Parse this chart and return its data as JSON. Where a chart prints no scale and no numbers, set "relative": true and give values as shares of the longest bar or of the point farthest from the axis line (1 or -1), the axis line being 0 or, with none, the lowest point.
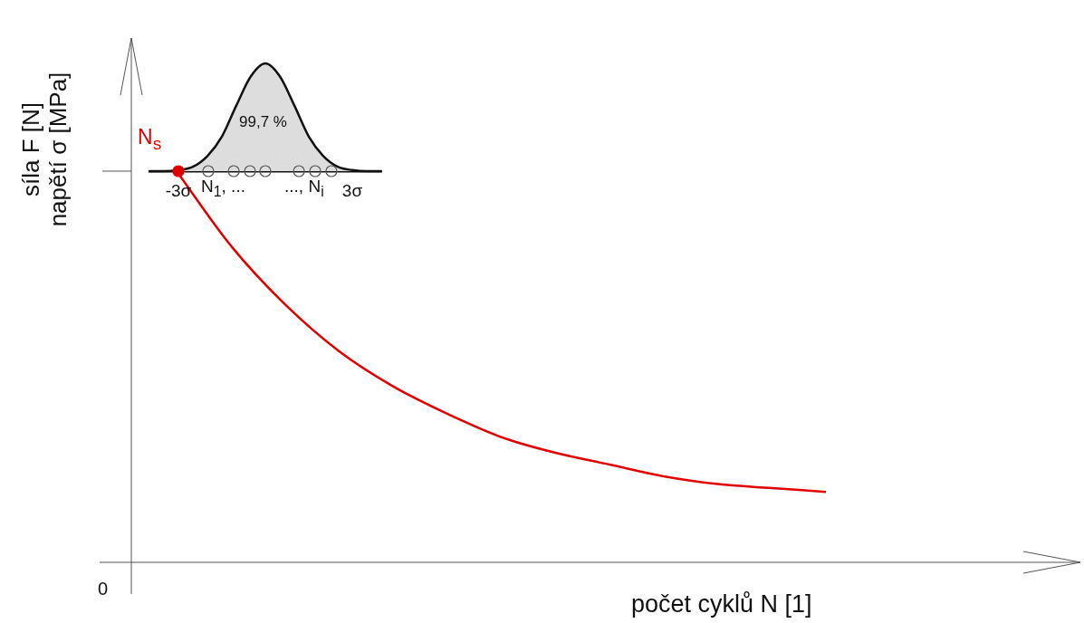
{
  "chart_data": [
    {
      "type": "line",
      "relative": true,
      "xlabel": "počet cyklů N [1]",
      "ylabel": "síla F [N]\nnapětí σ [MPa]",
      "categories": [
        null,
        null,
        null,
        null,
        null,
        null,
        null,
        null,
        null,
        null,
        null,
        null,
        null
      ],
      "series": [
        {
          "color": "#e00000",
          "values": [
            1,
            0.81,
            0.66,
            0.54,
            0.45,
            0.38,
            0.32,
            0.28,
            0.25,
            0.22,
            0.2,
            0.19,
            0.18
          ]
        }
      ],
      "annotations": [
        "0"
      ]
    },
    {
      "type": "area",
      "relative": true,
      "x": [
        -4,
        -3.5,
        -3,
        -2.5,
        -2,
        -1.5,
        -1,
        -0.5,
        0,
        0.5,
        1,
        1.5,
        2,
        2.5,
        3,
        3.5,
        4
      ],
      "xlim": [
        -4,
        4
      ],
      "xticks": [
        {
          "value": -3,
          "label": "-3σ"
        },
        {
          "value": 3,
          "label": "3σ"
        }
      ],
      "series": [
        {
          "color": "#111111",
          "values": [
            0,
            0,
            0.01,
            0.04,
            0.14,
            0.32,
            0.61,
            0.88,
            1,
            0.88,
            0.61,
            0.32,
            0.14,
            0.04,
            0.01,
            0,
            0
          ]
        },
        {
          "type": "scatter",
          "marker": "circle",
          "color": "#555555",
          "x": [
            -1.97,
            -1.09,
            -0.53,
            0,
            1.16,
            1.72,
            2.28
          ],
          "values": [
            0,
            0,
            0,
            0,
            0,
            0,
            0
          ]
        },
        {
          "type": "scatter",
          "marker": "circle",
          "name": "N$_{s}$",
          "color": "#e00000",
          "x": [
            -3
          ],
          "values": [
            0
          ]
        }
      ],
      "annotations": [
        "N$_{1}$, ...",
        "..., N$_{i}$",
        "99,7 %"
      ]
    }
  ]
}
